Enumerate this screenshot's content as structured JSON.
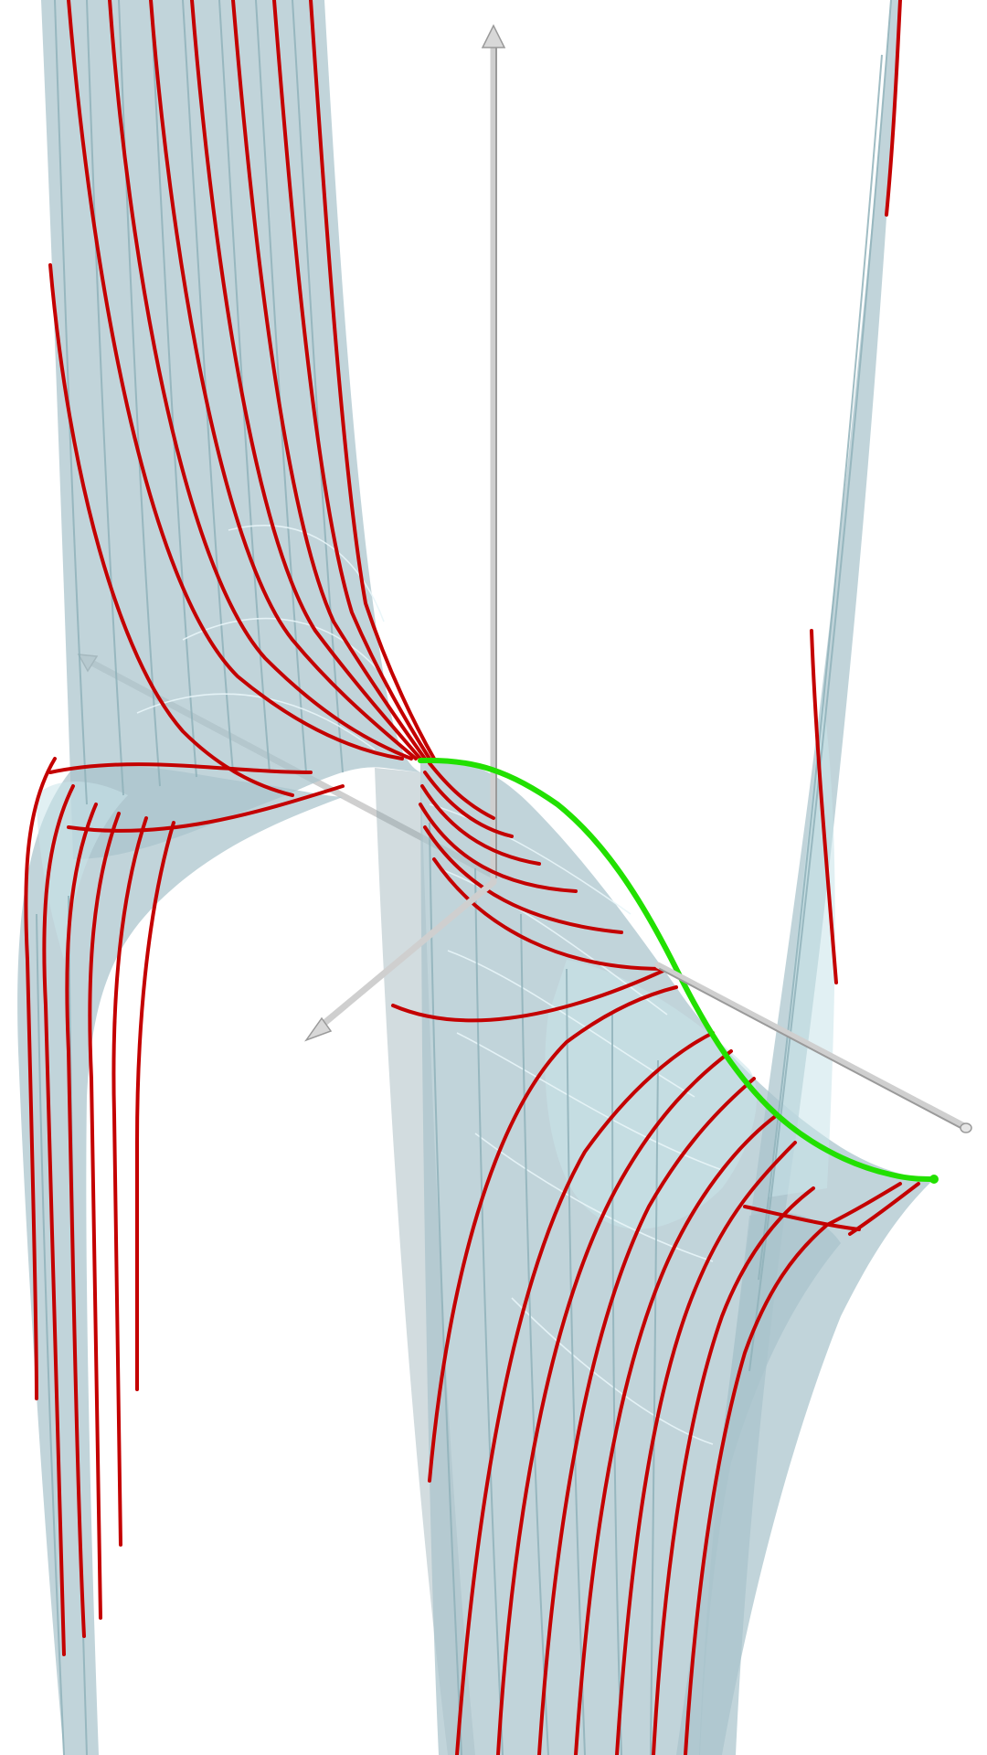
{
  "scene": {
    "background": "#ffffff",
    "surface_color": "#a9c4cc",
    "surface_highlight": "#c9e3ea",
    "mesh_color": "#8fb1ba",
    "level_curve_color": "#c40000",
    "ridge_curve_color": "#22e000",
    "axis_color": "#cfcfcf"
  },
  "axes": [
    {
      "name": "z-axis",
      "direction": "up",
      "arrow": true
    },
    {
      "name": "x-axis",
      "direction": "down-left",
      "arrow": true
    },
    {
      "name": "y-axis",
      "direction": "right",
      "arrow": false
    }
  ],
  "icons": {
    "z_arrow": "arrow-up-icon",
    "x_arrow": "arrow-down-left-icon",
    "y_tip": "axis-end-cap-icon"
  }
}
